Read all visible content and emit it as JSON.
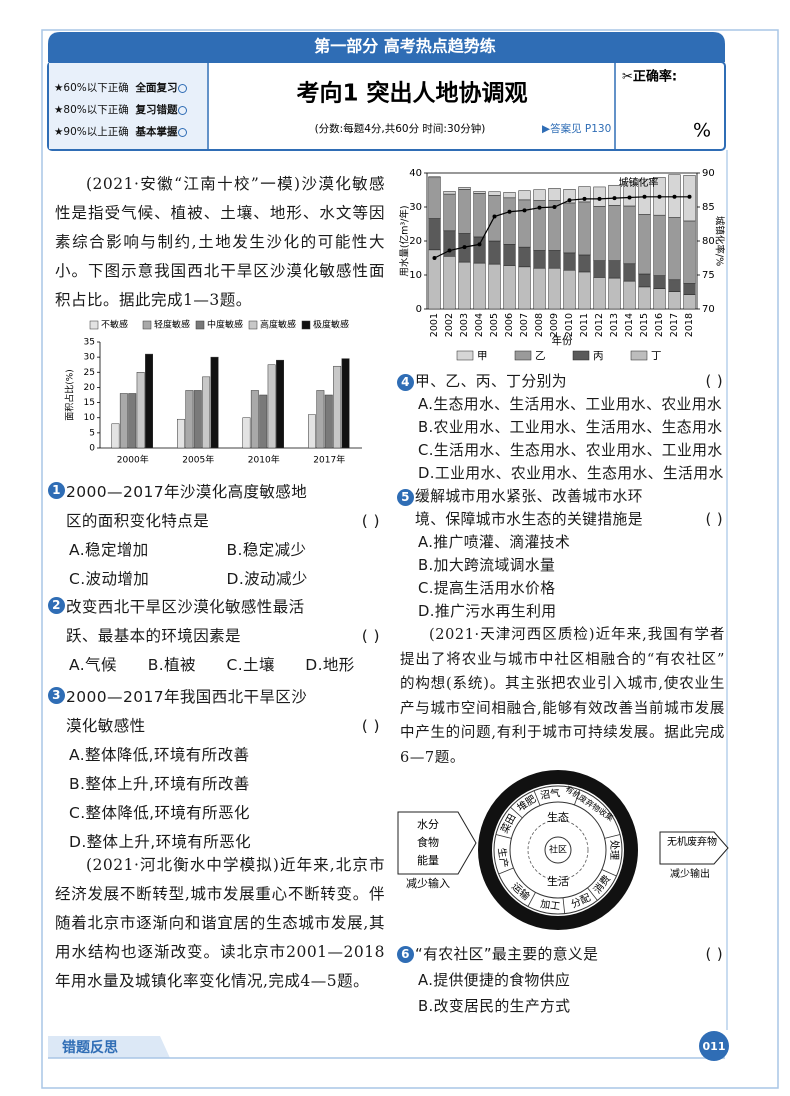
{
  "header": {
    "section": "第一部分  高考热点趋势练",
    "levels": [
      {
        "text": "★60%以下正确",
        "action": "全面复习"
      },
      {
        "text": "★80%以下正确",
        "action": "复习错题"
      },
      {
        "text": "★90%以上正确",
        "action": "基本掌握"
      }
    ],
    "title": "考向1   突出人地协调观",
    "meta": "(分数:每题4分,共60分   时间:30分钟)",
    "answer": "▶答案见 P130",
    "score_label": "✂正确率:",
    "percent": "%"
  },
  "passages": [
    "(2021·安徽“江南十校”一模)沙漠化敏感性是指受气候、植被、土壤、地形、水文等因素综合影响与制约,土地发生沙化的可能性大小。下图示意我国西北干旱区沙漠化敏感性面积占比。据此完成1—3题。",
    "(2021·河北衡水中学模拟)近年来,北京市经济发展不断转型,城市发展重心不断转变。伴随着北京市逐渐向和谐宜居的生态城市发展,其用水结构也逐渐改变。读北京市2001—2018年用水量及城镇化率变化情况,完成4—5题。",
    "(2021·天津河西区质检)近年来,我国有学者提出了将农业与城市中社区相融合的“有农社区”的构想(系统)。其主张把农业引入城市,使农业生产与城市空间相融合,能够有效改善当前城市发展中产生的问题,有利于城市可持续发展。据此完成6—7题。"
  ],
  "questions": [
    {
      "number": "1",
      "stem": "2000—2017年沙漠化高度敏感地区的面积变化特点是",
      "bracket": "(    )",
      "options": [
        "A.稳定增加",
        "B.稳定减少",
        "C.波动增加",
        "D.波动减少"
      ]
    },
    {
      "number": "2",
      "stem": "改变西北干旱区沙漠化敏感性最活跃、最基本的环境因素是",
      "bracket": "(    )",
      "options": [
        "A.气候",
        "B.植被",
        "C.土壤",
        "D.地形"
      ]
    },
    {
      "number": "3",
      "stem": "2000—2017年我国西北干旱区沙漠化敏感性",
      "bracket": "(    )",
      "options": [
        "A.整体降低,环境有所改善",
        "B.整体上升,环境有所改善",
        "C.整体降低,环境有所恶化",
        "D.整体上升,环境有所恶化"
      ]
    },
    {
      "number": "4",
      "stem": "甲、乙、丙、丁分别为",
      "bracket": "(    )",
      "options": [
        "A.生态用水、生活用水、工业用水、农业用水",
        "B.农业用水、工业用水、生活用水、生态用水",
        "C.生活用水、生态用水、农业用水、工业用水",
        "D.工业用水、农业用水、生态用水、生活用水"
      ]
    },
    {
      "number": "5",
      "stem": "缓解城市用水紧张、改善城市水环境、保障城市水生态的关键措施是",
      "bracket": "(    )",
      "options": [
        "A.推广喷灌、滴灌技术",
        "B.加大跨流域调水量",
        "C.提高生活用水价格",
        "D.推广污水再生利用"
      ]
    },
    {
      "number": "6",
      "stem": "“有农社区”最主要的意义是",
      "bracket": "(    )",
      "options": [
        "A.提供便捷的食物供应",
        "B.改变居民的生产方式"
      ]
    }
  ],
  "chart_data": [
    {
      "type": "bar",
      "ylabel": "面积占比(%)",
      "categories": [
        "2000年",
        "2005年",
        "2010年",
        "2017年"
      ],
      "series": [
        {
          "name": "不敏感",
          "color": "#e3e3e3",
          "values": [
            8,
            9.5,
            10,
            11
          ]
        },
        {
          "name": "轻度敏感",
          "color": "#a9a9a9",
          "values": [
            18,
            19,
            19,
            19
          ]
        },
        {
          "name": "中度敏感",
          "color": "#7a7a7a",
          "values": [
            18,
            19,
            17.5,
            17.5
          ]
        },
        {
          "name": "高度敏感",
          "color": "#c8c8c8",
          "values": [
            25,
            23.5,
            27.5,
            27
          ]
        },
        {
          "name": "极度敏感",
          "color": "#111111",
          "values": [
            31,
            30,
            29,
            29.5
          ]
        }
      ],
      "ylim": [
        0,
        35
      ],
      "yticks": [
        0,
        5,
        10,
        15,
        20,
        25,
        30,
        35
      ],
      "grid": false
    },
    {
      "type": "combo",
      "xlabel": "年份",
      "ylabel": "用水量(亿m³/年)",
      "y2label": "城镇化率/%",
      "categories": [
        "2001",
        "2002",
        "2003",
        "2004",
        "2005",
        "2006",
        "2007",
        "2008",
        "2009",
        "2010",
        "2011",
        "2012",
        "2013",
        "2014",
        "2015",
        "2016",
        "2017",
        "2018"
      ],
      "series": [
        {
          "name": "甲",
          "color": "#d6d6d6",
          "values": [
            0.3,
            0.8,
            0.6,
            0.6,
            1.1,
            1.6,
            2.7,
            3.2,
            3.6,
            4.0,
            4.5,
            5.7,
            5.9,
            7.2,
            10.4,
            11.1,
            12.6,
            13.4
          ]
        },
        {
          "name": "乙",
          "color": "#9a9a9a",
          "values": [
            12.0,
            10.8,
            13.0,
            12.8,
            13.4,
            13.7,
            13.9,
            14.7,
            14.7,
            14.7,
            15.6,
            16.0,
            16.3,
            17.0,
            17.5,
            17.8,
            18.3,
            18.4
          ]
        },
        {
          "name": "丙",
          "color": "#5a5a5a",
          "values": [
            9.2,
            7.5,
            8.4,
            7.7,
            6.8,
            6.2,
            5.8,
            5.2,
            5.2,
            5.1,
            5.0,
            4.9,
            5.1,
            5.1,
            3.8,
            3.8,
            3.5,
            3.3
          ]
        },
        {
          "name": "丁",
          "color": "#bdbdbd",
          "values": [
            17.4,
            15.5,
            13.8,
            13.5,
            13.2,
            12.8,
            12.4,
            12.0,
            12.0,
            11.4,
            10.9,
            9.3,
            9.1,
            8.2,
            6.5,
            6.0,
            5.1,
            4.2
          ]
        },
        {
          "name": "城镇化率",
          "color": "#000000",
          "type": "line",
          "axis": "y2",
          "values": [
            77.5,
            78.6,
            79.1,
            79.5,
            83.6,
            84.3,
            84.5,
            84.9,
            85.0,
            86.0,
            86.2,
            86.2,
            86.3,
            86.4,
            86.5,
            86.5,
            86.5,
            86.5
          ]
        }
      ],
      "ylim": [
        0,
        40
      ],
      "yticks": [
        0,
        10,
        20,
        30,
        40
      ],
      "y2lim": [
        70,
        90
      ],
      "y2ticks": [
        70,
        75,
        80,
        85,
        90
      ],
      "grid": false
    }
  ],
  "diagram": {
    "inputs": [
      "水分",
      "食物",
      "能量"
    ],
    "input_caption": "减少输入",
    "output": "无机废弃物",
    "output_caption": "减少输出",
    "ring": [
      "菜田",
      "堆肥",
      "沼气",
      "有机废弃物收集",
      "处理",
      "消费",
      "分配",
      "加工",
      "运输",
      "生产"
    ],
    "inner": [
      "生态",
      "社区",
      "生活"
    ]
  },
  "footer": {
    "label": "错题反思",
    "page": "011"
  }
}
